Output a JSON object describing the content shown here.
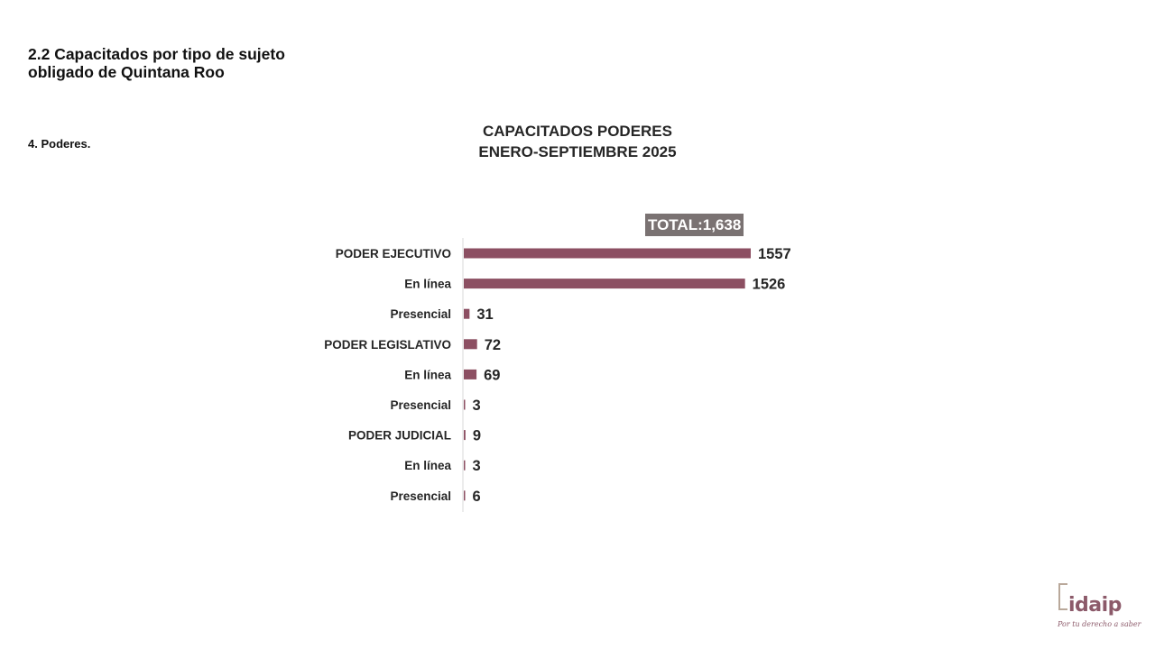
{
  "slide": {
    "section_title": "2.2 Capacitados por tipo de sujeto obligado de Quintana Roo",
    "subsection": "4. Poderes.",
    "total_label": "TOTAL:1,638"
  },
  "logo": {
    "name": "idaip",
    "tagline": "Por tu derecho a saber"
  },
  "colors": {
    "bar": "#8c4f62",
    "axis": "#d9d9d9",
    "total_badge_bg": "#7a7272"
  },
  "chart_data": {
    "type": "bar",
    "orientation": "horizontal",
    "title": "CAPACITADOS PODERES\nENERO-SEPTIEMBRE 2025",
    "title_lines": [
      "CAPACITADOS PODERES",
      "ENERO-SEPTIEMBRE 2025"
    ],
    "categories": [
      "PODER EJECUTIVO",
      "En línea",
      "Presencial",
      "PODER LEGISLATIVO",
      "En línea",
      "Presencial",
      "PODER JUDICIAL",
      "En línea",
      "Presencial"
    ],
    "values": [
      1557,
      1526,
      31,
      72,
      69,
      3,
      9,
      3,
      6
    ],
    "xlim": [
      0,
      1600
    ],
    "grid": false,
    "data_labels": true,
    "legend": "none",
    "xlabel": "",
    "ylabel": ""
  }
}
